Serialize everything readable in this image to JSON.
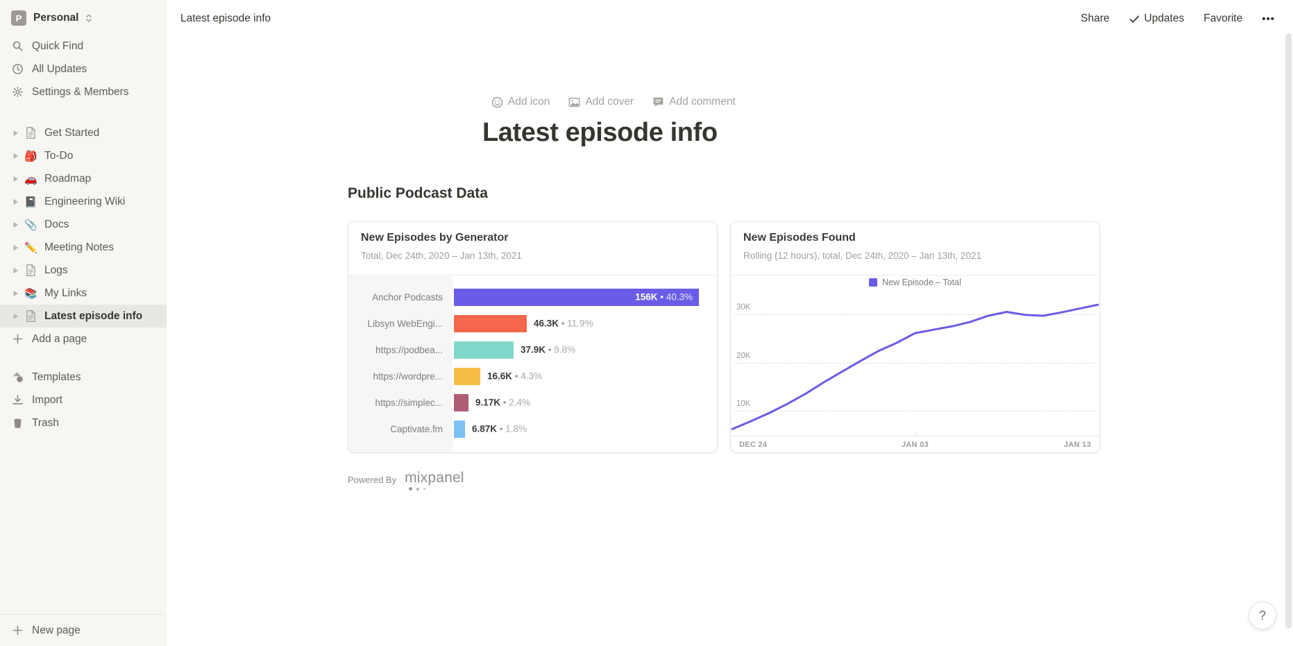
{
  "workspace": {
    "name": "Personal",
    "avatar_letter": "P"
  },
  "topbar": {
    "breadcrumb": "Latest episode info",
    "share_label": "Share",
    "updates_label": "Updates",
    "favorite_label": "Favorite",
    "more_label": "•••"
  },
  "sidebar": {
    "nav": [
      {
        "label": "Quick Find",
        "icon": "search-icon"
      },
      {
        "label": "All Updates",
        "icon": "clock-icon"
      },
      {
        "label": "Settings & Members",
        "icon": "gear-icon"
      }
    ],
    "pages": [
      {
        "label": "Get Started",
        "icon": "page"
      },
      {
        "label": "To-Do",
        "icon": "🎒"
      },
      {
        "label": "Roadmap",
        "icon": "🚗"
      },
      {
        "label": "Engineering Wiki",
        "icon": "📓"
      },
      {
        "label": "Docs",
        "icon": "📎"
      },
      {
        "label": "Meeting Notes",
        "icon": "✏️"
      },
      {
        "label": "Logs",
        "icon": "page"
      },
      {
        "label": "My Links",
        "icon": "📚"
      },
      {
        "label": "Latest episode info",
        "icon": "page",
        "selected": true
      }
    ],
    "add_a_page_label": "Add a page",
    "footer": [
      {
        "label": "Templates",
        "icon": "templates-icon"
      },
      {
        "label": "Import",
        "icon": "import-icon"
      },
      {
        "label": "Trash",
        "icon": "trash-icon"
      }
    ],
    "new_page_label": "New page"
  },
  "page": {
    "actions": [
      {
        "label": "Add icon",
        "icon": "emoji-icon"
      },
      {
        "label": "Add cover",
        "icon": "image-icon"
      },
      {
        "label": "Add comment",
        "icon": "comment-icon"
      }
    ],
    "title": "Latest episode info",
    "section_heading": "Public Podcast Data",
    "powered_by_label": "Powered By",
    "brand_name": "mixpanel",
    "help_label": "?"
  },
  "chart_data": [
    {
      "type": "bar",
      "orientation": "horizontal",
      "title": "New Episodes by Generator",
      "subtitle": "Total, Dec 24th, 2020 – Jan 13th, 2021",
      "categories": [
        "Anchor Podcasts",
        "Libsyn WebEngi...",
        "https://podbea...",
        "https://wordpre...",
        "https://simplec...",
        "Captivate.fm"
      ],
      "values": [
        156000,
        46300,
        37900,
        16600,
        9170,
        6870
      ],
      "value_labels": [
        "156K",
        "46.3K",
        "37.9K",
        "16.6K",
        "9.17K",
        "6.87K"
      ],
      "pct_labels": [
        "40.3%",
        "11.9%",
        "9.8%",
        "4.3%",
        "2.4%",
        "1.8%"
      ],
      "separator": "•",
      "colors": [
        "#6a5ce6",
        "#f4674c",
        "#7fd6c9",
        "#f7bc45",
        "#ae5b74",
        "#7cc1f4"
      ],
      "label_inside": [
        true,
        false,
        false,
        false,
        false,
        false
      ],
      "xmax": 156000
    },
    {
      "type": "line",
      "title": "New Episodes Found",
      "subtitle": "Rolling (12 hours), total, Dec 24th, 2020 – Jan 13th, 2021",
      "legend": "New Episode – Total",
      "color": "#6a5ce6",
      "x_ticks": [
        "DEC 24",
        "JAN 03",
        "JAN 13"
      ],
      "y_ticks": [
        {
          "label": "30K",
          "value": 30000
        },
        {
          "label": "20K",
          "value": 20000
        },
        {
          "label": "10K",
          "value": 10000
        }
      ],
      "x_range": [
        "Dec 24th, 2020",
        "Jan 13th, 2021"
      ],
      "values": [
        6200,
        7800,
        9500,
        11400,
        13500,
        15900,
        18100,
        20300,
        22400,
        24100,
        26100,
        26800,
        27500,
        28400,
        29700,
        30500,
        29900,
        29700,
        30400,
        31200,
        32000
      ],
      "grid": "dashed-horizontal",
      "legend_position": "top-center"
    }
  ]
}
